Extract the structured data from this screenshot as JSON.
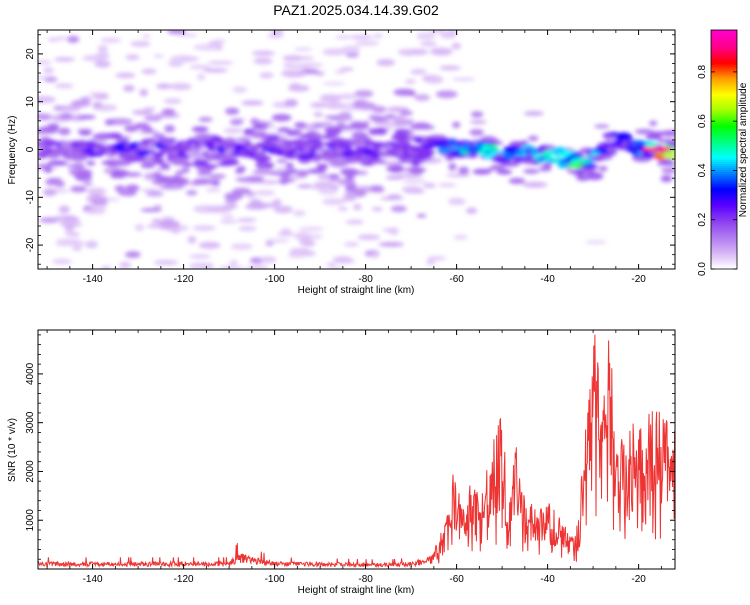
{
  "title": "PAZ1.2025.034.14.39.G02",
  "chart_data": [
    {
      "type": "heatmap",
      "xlabel": "Height of straight line (km)",
      "ylabel": "Frequency (Hz)",
      "xlim": [
        -152,
        -12
      ],
      "ylim": [
        -25,
        25
      ],
      "xticks": [
        -140,
        -120,
        -100,
        -80,
        -60,
        -40,
        -20
      ],
      "xtick_labels": [
        "-140",
        "-120",
        "-100",
        "-80",
        "-60",
        "-40",
        "-20"
      ],
      "yticks": [
        -20,
        -10,
        0,
        10,
        20
      ],
      "ytick_labels": [
        "-20",
        "-10",
        "0",
        "10",
        "20"
      ],
      "colorbar": {
        "label": "Normalized spectral amplitude",
        "range": [
          0,
          0.97
        ],
        "ticks": [
          0.0,
          0.2,
          0.4,
          0.6,
          0.8
        ],
        "tick_labels": [
          "0.0",
          "0.2",
          "0.4",
          "0.6",
          "0.8"
        ],
        "colors": [
          "#ffffff",
          "#d6b4f6",
          "#b07af0",
          "#8a3ff0",
          "#5a00ff",
          "#0000ff",
          "#0080ff",
          "#00ffff",
          "#00ff80",
          "#00ff00",
          "#a0ff00",
          "#ffff00",
          "#ffa000",
          "#ff0000",
          "#ff0088",
          "#ff00c8"
        ]
      },
      "ridge": {
        "x": [
          -150,
          -140,
          -130,
          -120,
          -110,
          -100,
          -90,
          -80,
          -70,
          -65,
          -60,
          -55,
          -50,
          -45,
          -40,
          -35,
          -32,
          -28,
          -25,
          -20,
          -15,
          -12
        ],
        "frequency": [
          0,
          0,
          0,
          0,
          0,
          0,
          0,
          0,
          0,
          1,
          0.5,
          0,
          -1,
          -1,
          -1,
          -2,
          -4,
          0,
          2,
          0,
          0,
          0
        ],
        "amplitude": [
          0.2,
          0.25,
          0.3,
          0.25,
          0.25,
          0.25,
          0.2,
          0.25,
          0.2,
          0.3,
          0.45,
          0.45,
          0.45,
          0.4,
          0.45,
          0.5,
          0.55,
          0.3,
          0.3,
          0.35,
          0.9,
          0.5
        ]
      },
      "grid": false
    },
    {
      "type": "line",
      "xlabel": "Height of straight line (km)",
      "ylabel": "SNR (10 * v/v)",
      "xlim": [
        -152,
        -12
      ],
      "ylim": [
        0,
        4900
      ],
      "xticks": [
        -140,
        -120,
        -100,
        -80,
        -60,
        -40,
        -20
      ],
      "xtick_labels": [
        "-140",
        "-120",
        "-100",
        "-80",
        "-60",
        "-40",
        "-20"
      ],
      "yticks": [
        1000,
        2000,
        3000,
        4000
      ],
      "ytick_labels": [
        "1000",
        "2000",
        "3000",
        "4000"
      ],
      "color": "#ee3333",
      "envelope": {
        "x": [
          -152,
          -110,
          -108,
          -100,
          -75,
          -70,
          -66,
          -64,
          -62,
          -60.5,
          -59,
          -57,
          -55,
          -52,
          -50,
          -48.5,
          -47,
          -45,
          -42,
          -40,
          -37,
          -34,
          -33,
          -31,
          -29.5,
          -28,
          -26.5,
          -25,
          -23,
          -21,
          -19,
          -17,
          -15,
          -13,
          -12
        ],
        "y": [
          150,
          150,
          350,
          150,
          120,
          150,
          250,
          600,
          1100,
          2300,
          1200,
          1800,
          1500,
          2600,
          3200,
          1200,
          2600,
          1500,
          1200,
          1400,
          1000,
          600,
          1500,
          3500,
          4900,
          3000,
          4900,
          3000,
          2800,
          3000,
          3000,
          3300,
          3200,
          2900,
          3000
        ]
      },
      "grid": false
    }
  ]
}
